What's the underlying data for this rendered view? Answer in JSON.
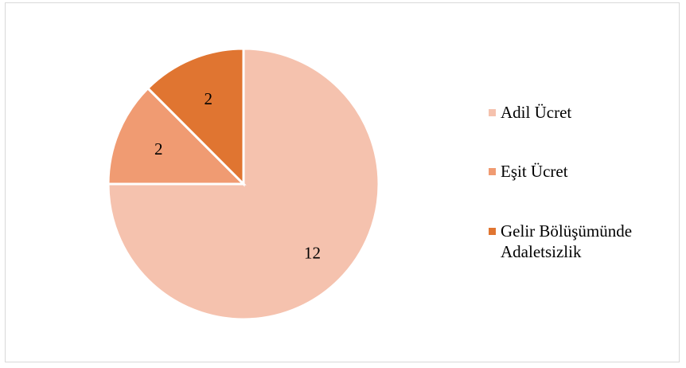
{
  "chart_data": {
    "type": "pie",
    "categories": [
      "Adil Ücret",
      "Eşit Ücret",
      "Gelir Bölüşümünde Adaletsizlik"
    ],
    "values": [
      12,
      2,
      2
    ],
    "data_labels": [
      "12",
      "2",
      "2"
    ],
    "colors": [
      "#f5c2ae",
      "#f09b72",
      "#e07531"
    ],
    "start_angle_deg": 0,
    "direction": "clockwise",
    "legend_position": "right",
    "title": ""
  }
}
